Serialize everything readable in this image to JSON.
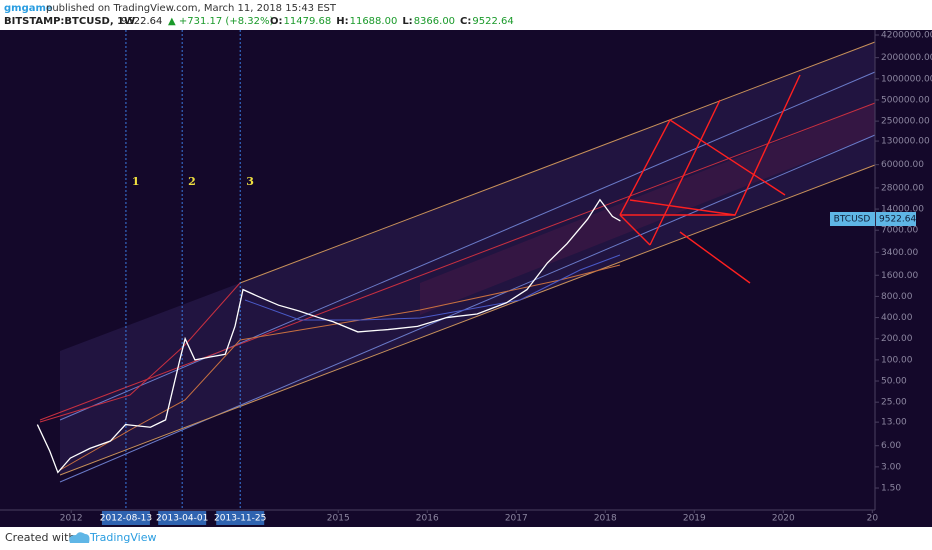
{
  "header": {
    "author": "gmgame",
    "published": "published on TradingView.com, March 11, 2018 15:43 EST",
    "symbol": "BITSTAMP:BTCUSD, 1W",
    "price": "9522.64",
    "change": "▲ +731.17 (+8.32%)",
    "ohlc": [
      {
        "key": "O:",
        "value": "11479.68"
      },
      {
        "key": "H:",
        "value": "11688.00"
      },
      {
        "key": "L:",
        "value": "8366.00"
      },
      {
        "key": "C:",
        "value": "9522.64"
      }
    ]
  },
  "chart_data": {
    "type": "line",
    "log_scale": true,
    "color": "#ffffff",
    "x": [
      2011.62,
      2011.76,
      2011.85,
      2011.99,
      2012.21,
      2012.44,
      2012.61,
      2012.89,
      2013.06,
      2013.22,
      2013.28,
      2013.39,
      2013.56,
      2013.73,
      2013.84,
      2013.93,
      2014.1,
      2014.33,
      2014.55,
      2014.78,
      2014.94,
      2015.22,
      2015.56,
      2015.89,
      2016.22,
      2016.56,
      2016.89,
      2017.12,
      2017.35,
      2017.57,
      2017.8,
      2017.94,
      2018.08,
      2018.17
    ],
    "values": [
      12,
      5,
      2.5,
      4,
      5.5,
      7,
      12,
      11,
      14,
      100,
      200,
      100,
      110,
      120,
      300,
      1000,
      800,
      600,
      500,
      400,
      350,
      250,
      270,
      300,
      400,
      450,
      650,
      1000,
      2400,
      4500,
      10000,
      19000,
      11000,
      9500
    ],
    "xlim": [
      2011.2,
      2021.03
    ],
    "ylim": [
      0.73,
      4950000
    ],
    "xticks": [
      2012,
      2015,
      2016,
      2017,
      2018,
      2019,
      2020,
      {
        "value": 2021,
        "label": "20"
      }
    ],
    "yticks": [
      {
        "value": 4200000,
        "label": "4200000.00"
      },
      {
        "value": 2000000,
        "label": "2000000.00"
      },
      {
        "value": 1000000,
        "label": "1000000.00"
      },
      {
        "value": 500000,
        "label": "500000.00"
      },
      {
        "value": 250000,
        "label": "250000.00"
      },
      {
        "value": 130000,
        "label": "130000.00"
      },
      {
        "value": 60000,
        "label": "60000.00"
      },
      {
        "value": 28000,
        "label": "28000.00"
      },
      {
        "value": 14000,
        "label": "14000.00"
      },
      {
        "value": 7000,
        "label": "7000.00"
      },
      {
        "value": 3400,
        "label": "3400.00"
      },
      {
        "value": 1600,
        "label": "1600.00"
      },
      {
        "value": 800,
        "label": "800.00"
      },
      {
        "value": 400,
        "label": "400.00"
      },
      {
        "value": 200,
        "label": "200.00"
      },
      {
        "value": 100,
        "label": "100.00"
      },
      {
        "value": 50,
        "label": "50.00"
      },
      {
        "value": 25,
        "label": "25.00"
      },
      {
        "value": 13,
        "label": "13.00"
      },
      {
        "value": 6,
        "label": "6.00"
      },
      {
        "value": 3,
        "label": "3.00"
      },
      {
        "value": 1.5,
        "label": "1.50"
      }
    ],
    "events": [
      {
        "number": "1",
        "date": "2012-08-13"
      },
      {
        "number": "2",
        "date": "2013-04-01"
      },
      {
        "number": "3",
        "date": "2013-11-25"
      }
    ],
    "price_tag": {
      "symbol": "BTCUSD",
      "price": "9522.64"
    }
  },
  "footer": {
    "created": "Created with",
    "brand": "TradingView"
  }
}
